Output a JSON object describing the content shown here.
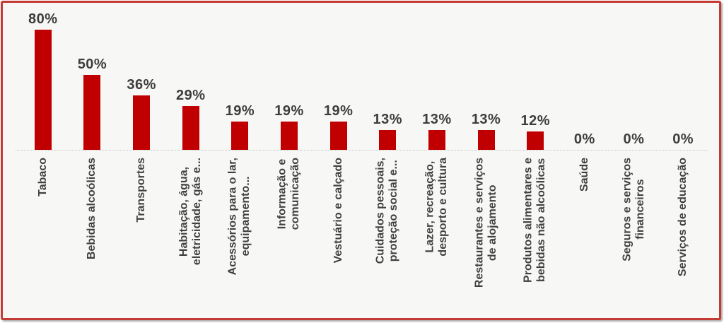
{
  "chart_data": {
    "type": "bar",
    "title": "",
    "xlabel": "",
    "ylabel": "",
    "unit": "%",
    "ylim": [
      0,
      85
    ],
    "grid": false,
    "legend": "none",
    "bar_color": "#c00000",
    "frame_border_color": "#c43a35",
    "background_color": "#f7f7f5",
    "label_color": "#3d3d3d",
    "categories": [
      "Tabaco",
      "Bebidas alcoólicas",
      "Transportes",
      "Habitação, água,\neletricidade, gás e...",
      "Acessórios para o lar,\nequipamento...",
      "Informação e\ncomunicação",
      "Vestuário e calçado",
      "Cuidados pessoais,\nproteção social e...",
      "Lazer, recreação,\ndesporto e cultura",
      "Restaurantes e serviços\nde alojamento",
      "Produtos alimentares e\nbebidas não alcoólicas",
      "Saúde",
      "Seguros e serviços\nfinanceiros",
      "Serviços de educação"
    ],
    "values": [
      80,
      50,
      36,
      29,
      19,
      19,
      19,
      13,
      13,
      13,
      12,
      0,
      0,
      0
    ],
    "value_labels": [
      "80%",
      "50%",
      "36%",
      "29%",
      "19%",
      "19%",
      "19%",
      "13%",
      "13%",
      "13%",
      "12%",
      "0%",
      "0%",
      "0%"
    ]
  }
}
